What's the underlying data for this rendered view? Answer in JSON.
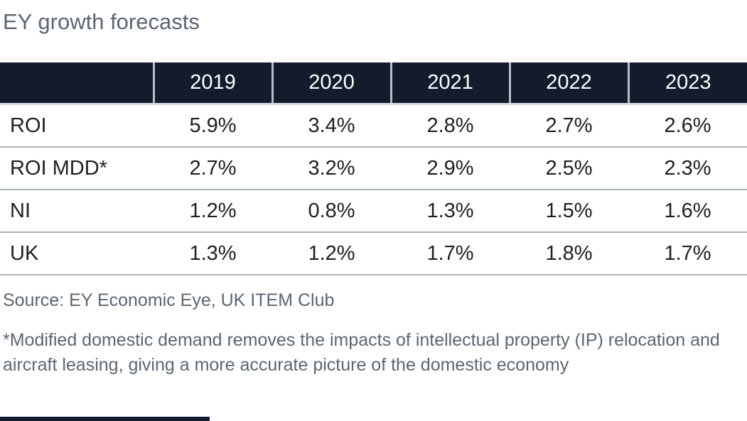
{
  "title": "EY growth forecasts",
  "colors": {
    "header_background": "#131c2c",
    "header_text": "#ffffff",
    "heading_text": "#5c6672",
    "body_text": "#1f1f1f",
    "row_divider": "#abb3ba",
    "header_divider": "#b7bec4"
  },
  "table": {
    "columns": [
      "",
      "2019",
      "2020",
      "2021",
      "2022",
      "2023"
    ],
    "rows": [
      {
        "label": "ROI",
        "values": [
          "5.9%",
          "3.4%",
          "2.8%",
          "2.7%",
          "2.6%"
        ]
      },
      {
        "label": "ROI MDD*",
        "values": [
          "2.7%",
          "3.2%",
          "2.9%",
          "2.5%",
          "2.3%"
        ]
      },
      {
        "label": "NI",
        "values": [
          "1.2%",
          "0.8%",
          "1.3%",
          "1.5%",
          "1.6%"
        ]
      },
      {
        "label": "UK",
        "values": [
          "1.3%",
          "1.2%",
          "1.7%",
          "1.8%",
          "1.7%"
        ]
      }
    ]
  },
  "source": "Source: EY Economic Eye, UK ITEM Club",
  "footnote": "*Modified domestic demand removes the impacts of intellectual property (IP) relocation and aircraft leasing, giving a more accurate picture of the domestic economy",
  "chart_data": {
    "type": "table",
    "title": "EY growth forecasts",
    "categories": [
      "2019",
      "2020",
      "2021",
      "2022",
      "2023"
    ],
    "series": [
      {
        "name": "ROI",
        "values": [
          5.9,
          3.4,
          2.8,
          2.7,
          2.6
        ]
      },
      {
        "name": "ROI MDD*",
        "values": [
          2.7,
          3.2,
          2.9,
          2.5,
          2.3
        ]
      },
      {
        "name": "NI",
        "values": [
          1.2,
          0.8,
          1.3,
          1.5,
          1.6
        ]
      },
      {
        "name": "UK",
        "values": [
          1.3,
          1.2,
          1.7,
          1.8,
          1.7
        ]
      }
    ],
    "unit": "%",
    "source": "Source: EY Economic Eye, UK ITEM Club",
    "footnote": "*Modified domestic demand removes the impacts of intellectual property (IP) relocation and aircraft leasing, giving a more accurate picture of the domestic economy"
  }
}
